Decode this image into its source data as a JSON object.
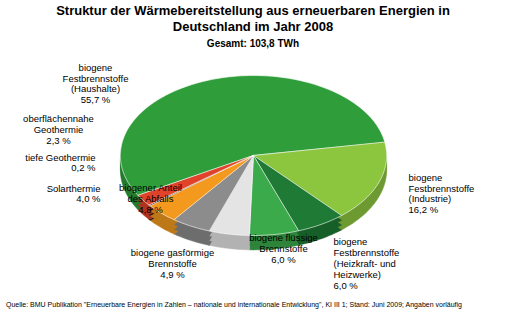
{
  "chart_data": {
    "type": "pie",
    "title": "Struktur der Wärmebereitstellung aus erneuerbaren Energien in\nDeutschland im Jahr 2008",
    "subtitle": "Gesamt: 103,8 TWh",
    "caption": "Quelle: BMU Publikation \"Erneuerbare Energien in Zahlen – nationale und internationale Entwicklung\", KI III 1; Stand: Juni 2009; Angaben vorläufig",
    "categories": [
      "biogene\nFestbrennstoffe\n(Haushalte)",
      "biogene\nFestbrennstoffe\n(Industrie)",
      "biogene\nFestbrennstoffe\n(Heizkraft- und\nHeizwerke)",
      "biogene flüssige\nBrennstoffe",
      "biogene gasförmige\nBrennstoffe",
      "biogener Anteil\ndes Abfalls",
      "Solarthermie",
      "tiefe Geothermie",
      "oberflächennahe\nGeothermie"
    ],
    "values": [
      55.7,
      16.2,
      6.0,
      6.0,
      4.9,
      4.8,
      4.0,
      0.2,
      2.3
    ],
    "value_labels": [
      "55,7 %",
      "16,2 %",
      "6,0 %",
      "6,0 %",
      "4,9 %",
      "4,8 %",
      "4,0 %",
      "0,2 %",
      "2,3 %"
    ],
    "colors": [
      "#2f9e3a",
      "#8cc63f",
      "#1e7a34",
      "#3aaa4a",
      "#e4e4e4",
      "#8c8c8c",
      "#f39a1e",
      "#111111",
      "#e0422a"
    ],
    "data_labels": true
  }
}
